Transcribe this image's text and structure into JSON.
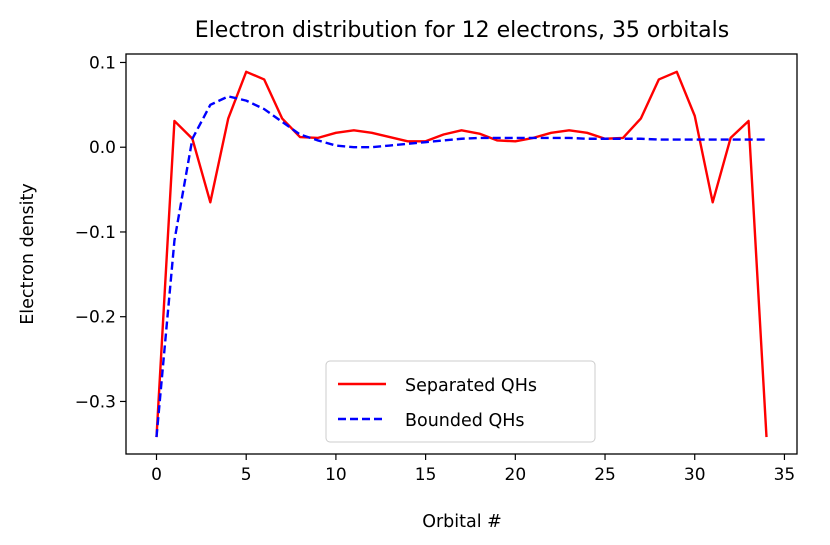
{
  "chart_data": {
    "type": "line",
    "title": "Electron distribution for 12 electrons, 35 orbitals",
    "xlabel": "Orbital #",
    "ylabel": "Electron density",
    "xlim": [
      -1.7,
      35.7
    ],
    "ylim": [
      -0.362,
      0.11
    ],
    "xticks": [
      0,
      5,
      10,
      15,
      20,
      25,
      30,
      35
    ],
    "yticks": [
      -0.3,
      -0.2,
      -0.1,
      0.0,
      0.1
    ],
    "xtick_labels": [
      "0",
      "5",
      "10",
      "15",
      "20",
      "25",
      "30",
      "35"
    ],
    "ytick_labels": [
      "−0.3",
      "−0.2",
      "−0.1",
      "0.0",
      "0.1"
    ],
    "grid": false,
    "legend_position": "lower center",
    "series": [
      {
        "name": "Separated QHs",
        "color": "#ff0000",
        "style": "solid",
        "x": [
          0,
          1,
          2,
          3,
          4,
          5,
          6,
          7,
          8,
          9,
          10,
          11,
          12,
          13,
          14,
          15,
          16,
          17,
          18,
          19,
          20,
          21,
          22,
          23,
          24,
          25,
          26,
          27,
          28,
          29,
          30,
          31,
          32,
          33,
          34
        ],
        "values": [
          -0.342,
          0.031,
          0.01,
          -0.065,
          0.034,
          0.089,
          0.08,
          0.034,
          0.012,
          0.011,
          0.017,
          0.02,
          0.017,
          0.012,
          0.007,
          0.007,
          0.015,
          0.02,
          0.016,
          0.008,
          0.007,
          0.011,
          0.017,
          0.02,
          0.017,
          0.01,
          0.011,
          0.034,
          0.08,
          0.089,
          0.037,
          -0.065,
          0.011,
          0.031,
          -0.342
        ]
      },
      {
        "name": "Bounded QHs",
        "color": "#0000ff",
        "style": "dashed",
        "x": [
          0,
          1,
          2,
          3,
          4,
          5,
          6,
          7,
          8,
          9,
          10,
          11,
          12,
          13,
          14,
          15,
          16,
          17,
          18,
          19,
          20,
          21,
          22,
          23,
          24,
          25,
          26,
          27,
          28,
          29,
          30,
          31,
          32,
          33,
          34
        ],
        "values": [
          -0.342,
          -0.11,
          0.01,
          0.05,
          0.06,
          0.055,
          0.045,
          0.03,
          0.015,
          0.008,
          0.002,
          0.0,
          0.0,
          0.002,
          0.004,
          0.006,
          0.008,
          0.01,
          0.011,
          0.011,
          0.011,
          0.011,
          0.011,
          0.011,
          0.01,
          0.01,
          0.01,
          0.01,
          0.009,
          0.009,
          0.009,
          0.009,
          0.009,
          0.009,
          0.009
        ]
      }
    ]
  }
}
